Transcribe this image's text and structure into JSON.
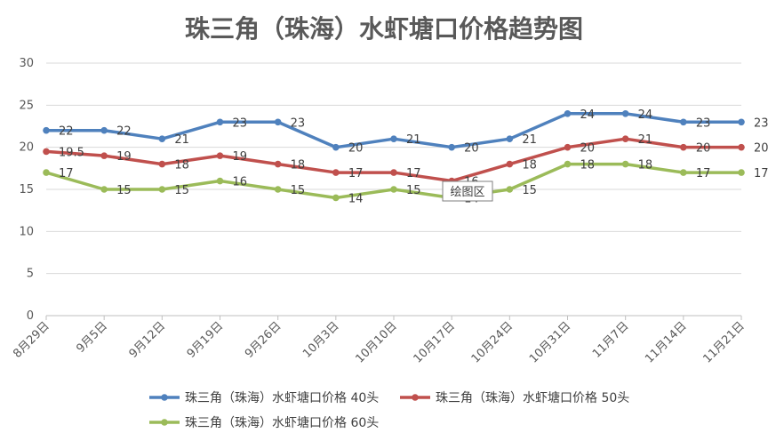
{
  "chart_data": {
    "type": "line",
    "title": "珠三角（珠海）水虾塘口价格趋势图",
    "xlabel": "",
    "ylabel": "",
    "ylim": [
      0,
      30
    ],
    "yticks": [
      0,
      5,
      10,
      15,
      20,
      25,
      30
    ],
    "grid": true,
    "legend_position": "bottom",
    "categories": [
      "8月29日",
      "9月5日",
      "9月12日",
      "9月19日",
      "9月26日",
      "10月3日",
      "10月10日",
      "10月17日",
      "10月24日",
      "10月31日",
      "11月7日",
      "11月14日",
      "11月21日"
    ],
    "series": [
      {
        "name": "珠三角（珠海）水虾塘口价格 40头",
        "color": "#4f81bd",
        "values": [
          22,
          22,
          21,
          23,
          23,
          20,
          21,
          20,
          21,
          24,
          24,
          23,
          23
        ],
        "labels": [
          "22",
          "22",
          "21",
          "23",
          "23",
          "20",
          "21",
          "20",
          "21",
          "24",
          "24",
          "23",
          "23"
        ]
      },
      {
        "name": "珠三角（珠海）水虾塘口价格 50头",
        "color": "#c0504d",
        "values": [
          19.5,
          19,
          18,
          19,
          18,
          17,
          17,
          16,
          18,
          20,
          21,
          20,
          20
        ],
        "labels": [
          "19.5",
          "19",
          "18",
          "19",
          "18",
          "17",
          "17",
          "16",
          "18",
          "20",
          "21",
          "20",
          "20"
        ]
      },
      {
        "name": "珠三角（珠海）水虾塘口价格 60头",
        "color": "#9bbb59",
        "values": [
          17,
          15,
          15,
          16,
          15,
          14,
          15,
          14,
          15,
          18,
          18,
          17,
          17
        ],
        "labels": [
          "17",
          "15",
          "15",
          "16",
          "15",
          "14",
          "15",
          "14",
          "15",
          "18",
          "18",
          "17",
          "17"
        ]
      }
    ],
    "annotation": "绘图区"
  }
}
